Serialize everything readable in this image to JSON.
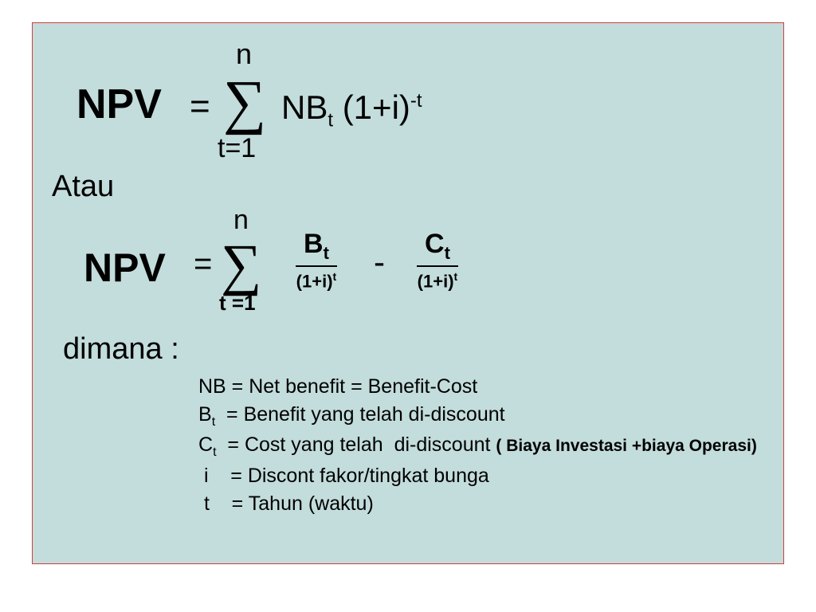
{
  "panel": {
    "background_color": "#c3dcdc",
    "border_color": "#d04040",
    "text_color": "#000000"
  },
  "formula1": {
    "lhs": "NPV",
    "equals": "=",
    "sigma": "∑",
    "upper": "n",
    "lower": "t=1",
    "rhs_html": "NB<sub>t</sub> (1+i)<sup>-t</sup>"
  },
  "connector": "Atau",
  "formula2": {
    "lhs": "NPV",
    "equals": "=",
    "sigma": "∑",
    "upper": "n",
    "lower": "t =1",
    "frac1_num_html": "B<sub>t</sub>",
    "frac1_den_html": "(1+i)<sup>t</sup>",
    "minus": "-",
    "frac2_num_html": "C<sub>t</sub>",
    "frac2_den_html": "(1+i)<sup>t</sup>"
  },
  "where_label": "dimana :",
  "definitions": {
    "d1": "NB = Net benefit = Benefit-Cost",
    "d2_html": "B<sub>t</sub>&nbsp;&nbsp;= Benefit yang telah di-discount",
    "d3_html": "C<sub>t</sub>&nbsp;&nbsp;= Cost yang telah&nbsp;&nbsp;di-discount <span class=\"extra\">( Biaya Investasi +biaya Operasi)</span>",
    "d4": " i    = Discont fakor/tingkat bunga",
    "d5": " t    = Tahun (waktu)"
  }
}
